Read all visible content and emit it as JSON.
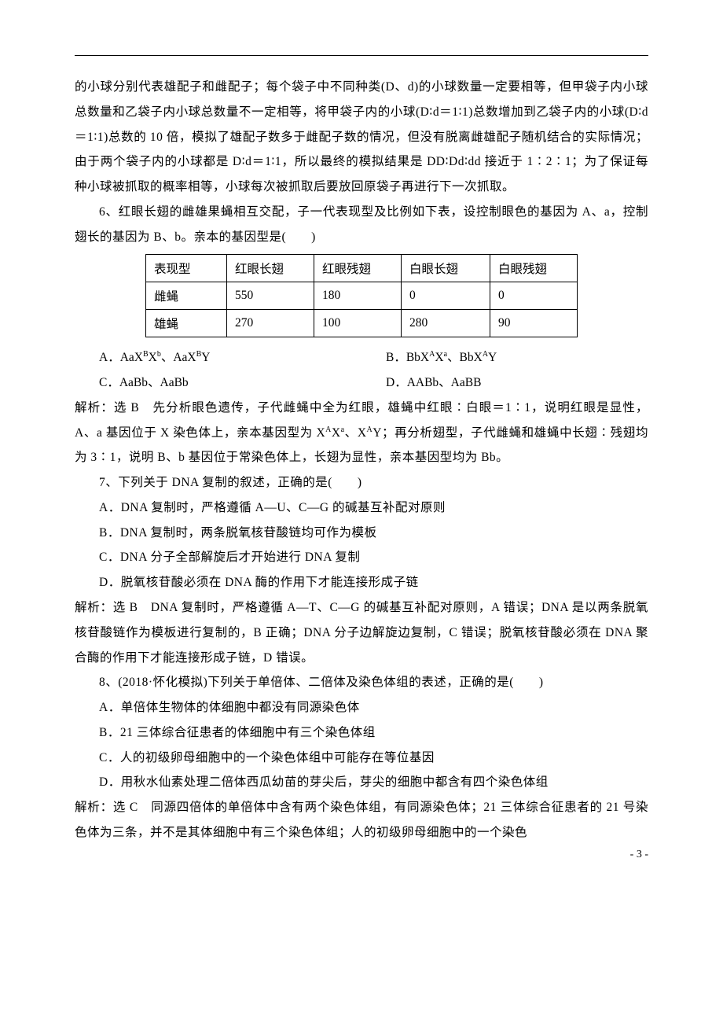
{
  "para1": "的小球分别代表雄配子和雌配子；每个袋子中不同种类(D、d)的小球数量一定要相等，但甲袋子内小球总数量和乙袋子内小球总数量不一定相等，将甲袋子内的小球(D∶d＝1∶1)总数增加到乙袋子内的小球(D∶d＝1∶1)总数的 10 倍，模拟了雄配子数多于雌配子数的情况，但没有脱离雌雄配子随机结合的实际情况；由于两个袋子内的小球都是 D∶d＝1∶1，所以最终的模拟结果是 DD∶Dd∶dd 接近于 1∶2∶1；为了保证每种小球被抓取的概率相等，小球每次被抓取后要放回原袋子再进行下一次抓取。",
  "q6": "6、红眼长翅的雌雄果蝇相互交配，子一代表现型及比例如下表，设控制眼色的基因为 A、a，控制翅长的基因为 B、b。亲本的基因型是(　　)",
  "table": {
    "cols": [
      "表现型",
      "红眼长翅",
      "红眼残翅",
      "白眼长翅",
      "白眼残翅"
    ],
    "rows": [
      [
        "雌蝇",
        "550",
        "180",
        "0",
        "0"
      ],
      [
        "雄蝇",
        "270",
        "100",
        "280",
        "90"
      ]
    ]
  },
  "opts6": {
    "A_pre": "A．AaX",
    "A_s1": "B",
    "A_mid1": "X",
    "A_s2": "b",
    "A_mid2": "、AaX",
    "A_s3": "B",
    "A_suf": "Y",
    "B_pre": "B．BbX",
    "B_s1": "A",
    "B_mid1": "X",
    "B_s2": "a",
    "B_mid2": "、BbX",
    "B_s3": "A",
    "B_suf": "Y",
    "C": "C．AaBb、AaBb",
    "D": "D．AABb、AaBB"
  },
  "ans6_pre": "解析：选 B　先分析眼色遗传，子代雌蝇中全为红眼，雄蝇中红眼∶白眼＝1∶1，说明红眼是显性，A、a 基因位于 X 染色体上，亲本基因型为 X",
  "ans6_s1": "A",
  "ans6_m1": "X",
  "ans6_s2": "a",
  "ans6_m2": "、X",
  "ans6_s3": "A",
  "ans6_suf": "Y；再分析翅型，子代雌蝇和雄蝇中长翅∶残翅均为 3∶1，说明 B、b 基因位于常染色体上，长翅为显性，亲本基因型均为 Bb。",
  "q7": "7、下列关于 DNA 复制的叙述，正确的是(　　)",
  "q7A": "A．DNA 复制时，严格遵循 A—U、C—G 的碱基互补配对原则",
  "q7B": "B．DNA 复制时，两条脱氧核苷酸链均可作为模板",
  "q7C": "C．DNA 分子全部解旋后才开始进行 DNA 复制",
  "q7D": "D．脱氧核苷酸必须在 DNA 酶的作用下才能连接形成子链",
  "ans7": "解析：选 B　DNA 复制时，严格遵循 A—T、C—G 的碱基互补配对原则，A 错误；DNA 是以两条脱氧核苷酸链作为模板进行复制的，B 正确；DNA 分子边解旋边复制，C 错误；脱氧核苷酸必须在 DNA 聚合酶的作用下才能连接形成子链，D 错误。",
  "q8": "8、(2018·怀化模拟)下列关于单倍体、二倍体及染色体组的表述，正确的是(　　)",
  "q8A": "A．单倍体生物体的体细胞中都没有同源染色体",
  "q8B": "B．21 三体综合征患者的体细胞中有三个染色体组",
  "q8C": "C．人的初级卵母细胞中的一个染色体组中可能存在等位基因",
  "q8D": "D．用秋水仙素处理二倍体西瓜幼苗的芽尖后，芽尖的细胞中都含有四个染色体组",
  "ans8": "解析：选 C　同源四倍体的单倍体中含有两个染色体组，有同源染色体；21 三体综合征患者的 21 号染色体为三条，并不是其体细胞中有三个染色体组；人的初级卵母细胞中的一个染色",
  "pageNum": "- 3 -"
}
